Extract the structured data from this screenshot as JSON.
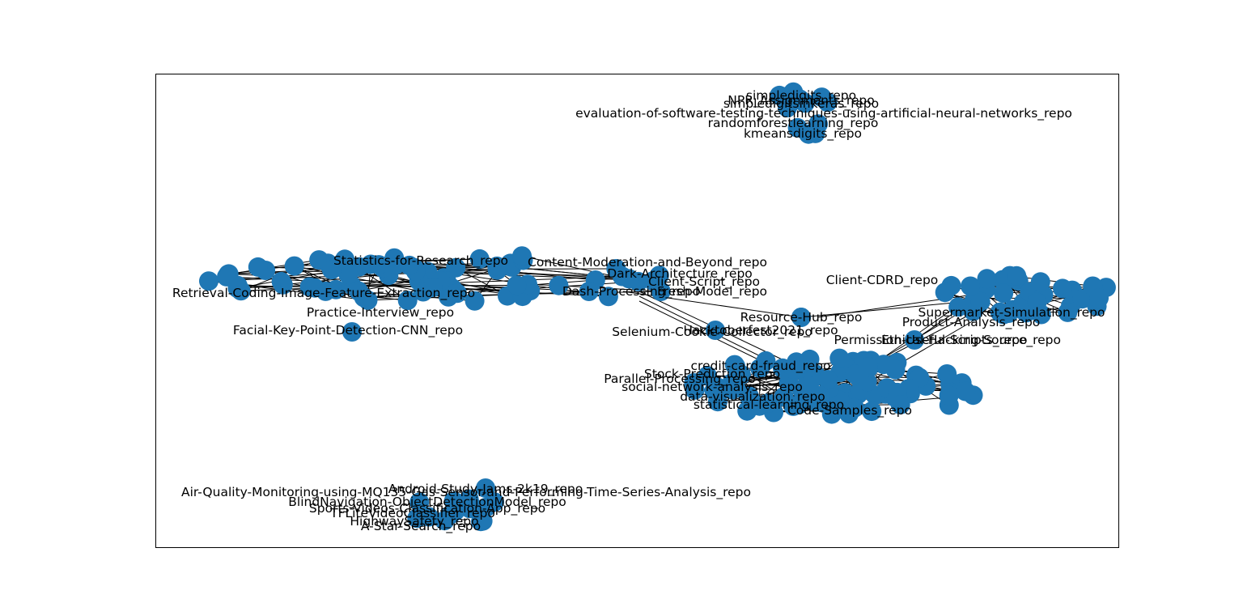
{
  "figure": {
    "node_color": "#1f77b4",
    "edge_color": "#000000",
    "frame_color": "#000000",
    "background": "#ffffff"
  },
  "graph": {
    "clusters": [
      {
        "id": "cluster-top",
        "labels": [
          "simpledigits_repo",
          "NPR_Assignments_repo",
          "simpledigitsinkeras_repo",
          "evaluation-of-software-testing-techniques-using-artificial-neural-networks_repo",
          "randomforestlearning_repo",
          "kmeansdigits_repo"
        ]
      },
      {
        "id": "cluster-left",
        "labels": [
          "Statistics-for-Research_repo",
          "Content-Moderation-and-Beyond_repo",
          "Dark-Architecture_repo",
          "Client-Script_repo",
          "Dash-Processing_repo",
          "Fresh-Model_repo",
          "Retrieval-Coding-Image-Feature-Extraction_repo",
          "Practice-Interview_repo",
          "Facial-Key-Point-Detection-CNN_repo",
          "Hacktoberfest2021_repo",
          "Selenium-Cookie-Collector_repo"
        ]
      },
      {
        "id": "cluster-hub",
        "labels": [
          "Resource-Hub_repo"
        ]
      },
      {
        "id": "cluster-right",
        "labels": [
          "Client-CDRD_repo",
          "Supermarket-Simulation_repo",
          "Product-Analysis_repo",
          "Permission-Useful-Scripts_repo",
          "Ethical-Hacking-Source_repo"
        ]
      },
      {
        "id": "cluster-bottom-center",
        "labels": [
          "credit-card-fraud_repo",
          "Stock-Prediction_repo",
          "Parallel-Processing_repo",
          "social-network-analysis_repo",
          "data-visualization_repo",
          "statistical-learning_repo",
          "Code-Samples_repo"
        ]
      },
      {
        "id": "cluster-bottom-left",
        "labels": [
          "Android-Study-Jams-2k19_repo",
          "Air-Quality-Monitoring-using-MQ135-Gas-Sensor-and-Performing-Time-Series-Analysis_repo",
          "BlindNavigation-ObjectDetectionModel_repo",
          "Sports-Videos-Classification-App_repo",
          "TFLiteVideoClassifier_repo",
          "HighwaySafety_repo",
          "A-Star-Search_repo"
        ]
      }
    ]
  }
}
